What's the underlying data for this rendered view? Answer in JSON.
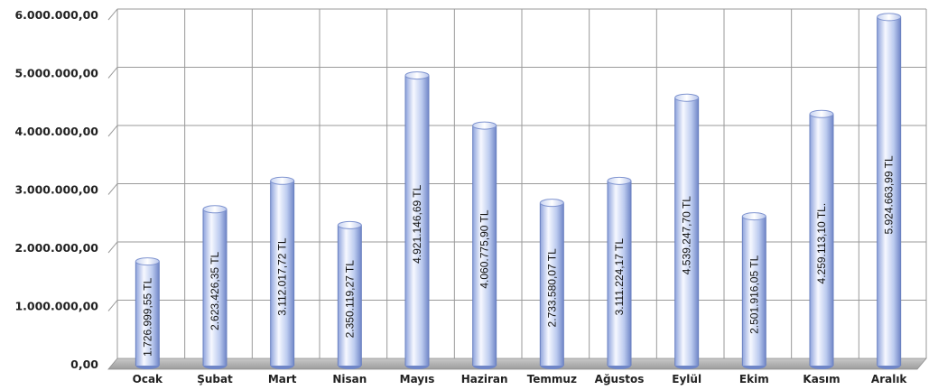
{
  "chart_data": {
    "type": "bar",
    "title": "",
    "xlabel": "",
    "ylabel": "",
    "categories": [
      "Ocak",
      "Şubat",
      "Mart",
      "Nisan",
      "Mayıs",
      "Haziran",
      "Temmuz",
      "Ağustos",
      "Eylül",
      "Ekim",
      "Kasım",
      "Aralık"
    ],
    "values": [
      1726999.55,
      2623426.35,
      3112017.72,
      2350119.27,
      4921146.69,
      4060775.9,
      2733580.07,
      3111224.17,
      4539247.7,
      2501916.05,
      4259113.1,
      5924663.99
    ],
    "data_labels": [
      "1.726.999,55 TL",
      "2.623.426,35 TL",
      "3.112.017,72 TL",
      "2.350.119,27 TL",
      "4.921.146,69 TL",
      "4.060.775,90 TL",
      "2.733.580,07 TL",
      "3.111.224,17 TL",
      "4.539.247,70 TL",
      "2.501.916,05 TL",
      "4.259.113,10 TL.",
      "5.924.663,99 TL"
    ],
    "ylim": [
      0,
      6000000
    ],
    "yticks": [
      0,
      1000000,
      2000000,
      3000000,
      4000000,
      5000000,
      6000000
    ],
    "ytick_labels": [
      "0,00",
      "1.000.000,00",
      "2.000.000,00",
      "3.000.000,00",
      "4.000.000,00",
      "5.000.000,00",
      "6.000.000,00"
    ],
    "grid": true,
    "legend": "none",
    "colors": {
      "bar_light": "#f4f7ff",
      "bar_mid": "#b9c9ee",
      "bar_dark": "#6f86c8",
      "grid": "#9a9a9a",
      "floor": "#a8a8a8"
    }
  }
}
